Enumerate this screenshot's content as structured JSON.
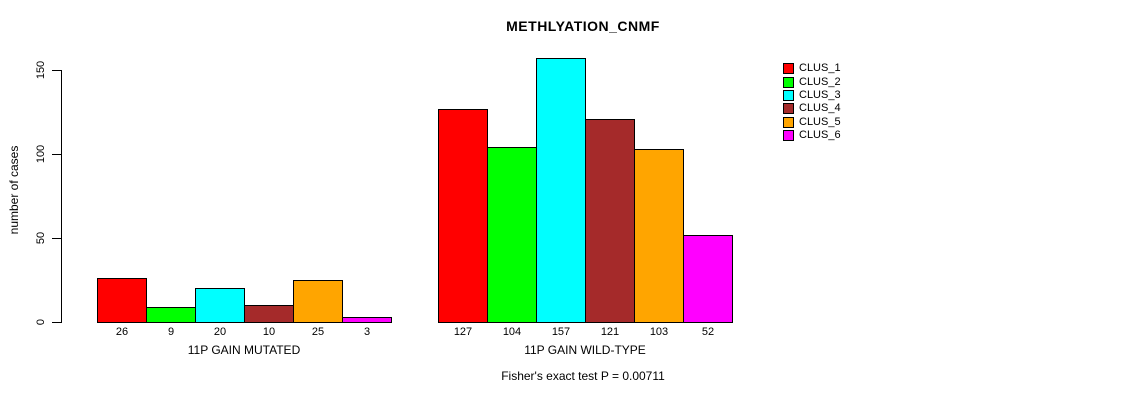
{
  "title": "METHLYATION_CNMF",
  "footer": "Fisher's exact test P = 0.00711",
  "legend": {
    "items": [
      {
        "label": "CLUS_1",
        "color": "#FF0000"
      },
      {
        "label": "CLUS_2",
        "color": "#00FF00"
      },
      {
        "label": "CLUS_3",
        "color": "#00FFFF"
      },
      {
        "label": "CLUS_4",
        "color": "#A52A2A"
      },
      {
        "label": "CLUS_5",
        "color": "#FFA500"
      },
      {
        "label": "CLUS_6",
        "color": "#FF00FF"
      }
    ]
  },
  "chart_data": {
    "type": "bar",
    "title": "METHLYATION_CNMF",
    "xlabel": "",
    "ylabel": "number of cases",
    "ylim": [
      0,
      150
    ],
    "yticks": [
      0,
      50,
      100,
      150
    ],
    "grid": false,
    "legend_position": "right",
    "series_names": [
      "CLUS_1",
      "CLUS_2",
      "CLUS_3",
      "CLUS_4",
      "CLUS_5",
      "CLUS_6"
    ],
    "series_colors": [
      "#FF0000",
      "#00FF00",
      "#00FFFF",
      "#A52A2A",
      "#FFA500",
      "#FF00FF"
    ],
    "groups": [
      {
        "label": "11P GAIN MUTATED",
        "values": [
          26,
          9,
          20,
          10,
          25,
          3
        ]
      },
      {
        "label": "11P GAIN WILD-TYPE",
        "values": [
          127,
          104,
          157,
          121,
          103,
          52
        ]
      }
    ],
    "annotation": "Fisher's exact test P = 0.00711"
  }
}
